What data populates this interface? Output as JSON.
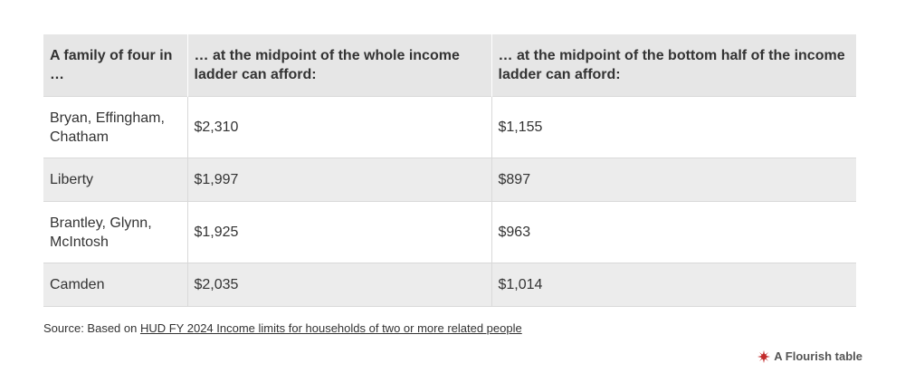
{
  "chart_data": {
    "type": "table",
    "columns": [
      "A family of four in …",
      "… at the midpoint of the whole income ladder can afford:",
      "… at the midpoint of the bottom half of the income ladder can afford:"
    ],
    "rows": [
      [
        "Bryan, Effingham, Chatham",
        "$2,310",
        "$1,155"
      ],
      [
        "Liberty",
        "$1,997",
        "$897"
      ],
      [
        "Brantley, Glynn, McIntosh",
        "$1,925",
        "$963"
      ],
      [
        "Camden",
        "$2,035",
        "$1,014"
      ]
    ]
  },
  "source": {
    "prefix": "Source: Based on ",
    "link_text": "HUD FY 2024 Income limits for households of two or more related people"
  },
  "credit": {
    "label": "A Flourish table",
    "icon": "flourish-logo-icon",
    "icon_color": "#c22b2b"
  },
  "colors": {
    "header_bg": "#e6e6e6",
    "stripe_bg": "#ececec",
    "text": "#333333"
  }
}
